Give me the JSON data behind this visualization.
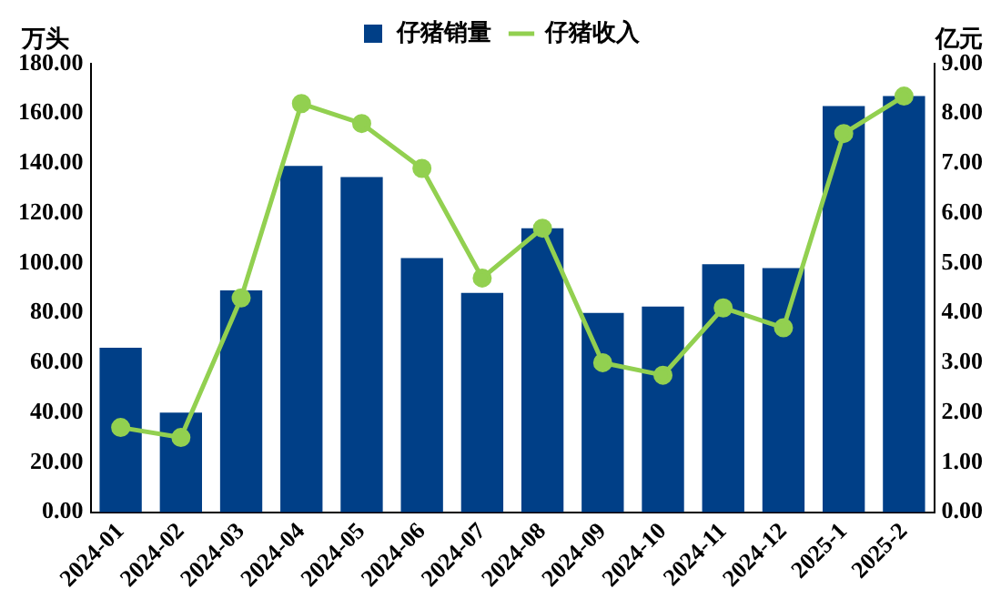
{
  "chart_data": {
    "type": "bar",
    "ylabel": "万头",
    "y2label": "亿元",
    "categories": [
      "2024-01",
      "2024-02",
      "2024-03",
      "2024-04",
      "2024-05",
      "2024-06",
      "2024-07",
      "2024-08",
      "2024-09",
      "2024-10",
      "2024-11",
      "2024-12",
      "2025-1",
      "2025-2"
    ],
    "series": [
      {
        "name": "仔猪销量",
        "color": "#003f87",
        "values": [
          66,
          40,
          89,
          139,
          134.5,
          102,
          88,
          114,
          80,
          82.5,
          99.5,
          98,
          163,
          167
        ]
      },
      {
        "name": "仔猪收入",
        "type": "line",
        "axis": "y2",
        "color": "#92d050",
        "values": [
          1.7,
          1.5,
          4.3,
          8.2,
          7.8,
          6.9,
          4.7,
          5.7,
          3.0,
          2.75,
          4.1,
          3.7,
          7.6,
          8.35
        ]
      }
    ],
    "ylim": [
      0,
      180
    ],
    "yticks": [
      {
        "value": 0,
        "label": "0.00"
      },
      {
        "value": 20,
        "label": "20.00"
      },
      {
        "value": 40,
        "label": "40.00"
      },
      {
        "value": 60,
        "label": "60.00"
      },
      {
        "value": 80,
        "label": "80.00"
      },
      {
        "value": 100,
        "label": "100.00"
      },
      {
        "value": 120,
        "label": "120.00"
      },
      {
        "value": 140,
        "label": "140.00"
      },
      {
        "value": 160,
        "label": "160.00"
      },
      {
        "value": 180,
        "label": "180.00"
      }
    ],
    "y2lim": [
      0,
      9
    ],
    "y2ticks": [
      {
        "value": 0,
        "label": "0.00"
      },
      {
        "value": 1,
        "label": "1.00"
      },
      {
        "value": 2,
        "label": "2.00"
      },
      {
        "value": 3,
        "label": "3.00"
      },
      {
        "value": 4,
        "label": "4.00"
      },
      {
        "value": 5,
        "label": "5.00"
      },
      {
        "value": 6,
        "label": "6.00"
      },
      {
        "value": 7,
        "label": "7.00"
      },
      {
        "value": 8,
        "label": "8.00"
      },
      {
        "value": 9,
        "label": "9.00"
      }
    ],
    "legend": "top",
    "marker": "circle",
    "grid": false
  }
}
